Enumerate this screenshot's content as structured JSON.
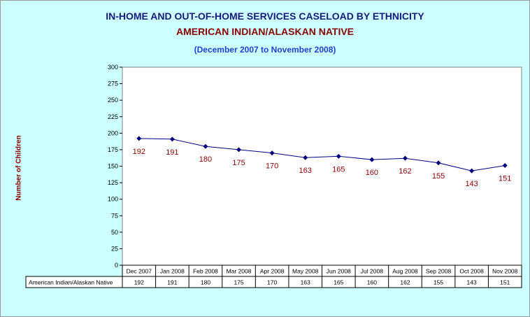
{
  "title": "IN-HOME AND OUT-OF-HOME SERVICES CASELOAD BY ETHNICITY",
  "subtitle": "AMERICAN INDIAN/ALASKAN NATIVE",
  "period": "(December 2007 to November 2008)",
  "colors": {
    "background": "#ccffff",
    "plot_area": "#ffffff",
    "series_line": "#000080",
    "data_label": "#8b0000",
    "title": "#1a1a7a",
    "subtitle": "#8b0000",
    "period": "#1f3fcf"
  },
  "chart_data": {
    "type": "line",
    "title": "IN-HOME AND OUT-OF-HOME SERVICES CASELOAD BY ETHNICITY",
    "xlabel": "",
    "ylabel": "Number of Children",
    "ylim": [
      0,
      300
    ],
    "yticks": [
      0,
      25,
      50,
      75,
      100,
      125,
      150,
      175,
      200,
      225,
      250,
      275,
      300
    ],
    "grid": false,
    "legend": "data table below chart",
    "categories": [
      "Dec 2007",
      "Jan 2008",
      "Feb 2008",
      "Mar 2008",
      "Apr 2008",
      "May 2008",
      "Jun 2008",
      "Jul 2008",
      "Aug 2008",
      "Sep 2008",
      "Oct 2008",
      "Nov 2008"
    ],
    "series": [
      {
        "name": "American Indian/Alaskan Native",
        "values": [
          192,
          191,
          180,
          175,
          170,
          163,
          165,
          160,
          162,
          155,
          143,
          151
        ]
      }
    ]
  }
}
